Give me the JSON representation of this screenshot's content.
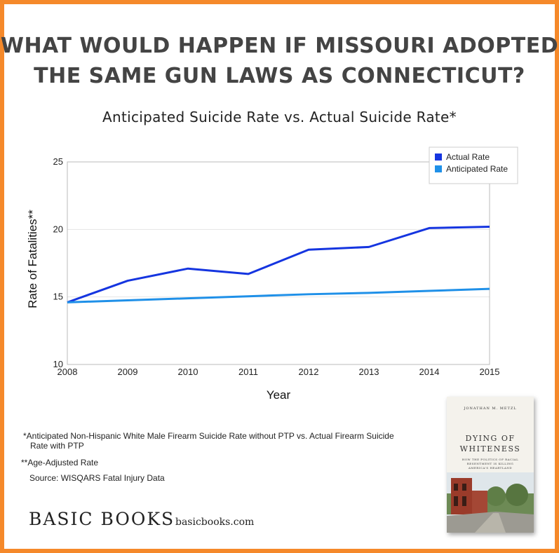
{
  "headline": {
    "line1": "WHAT WOULD HAPPEN IF MISSOURI ADOPTED",
    "line2": "THE SAME GUN LAWS AS CONNECTICUT?"
  },
  "colors": {
    "border": "#f5892a",
    "actual": "#1535e0",
    "anticipated": "#1f90e8"
  },
  "chart_data": {
    "type": "line",
    "title": "Anticipated Suicide Rate vs. Actual Suicide Rate*",
    "xlabel": "Year",
    "ylabel": "Rate of Fatalities**",
    "x": [
      "2008",
      "2009",
      "2010",
      "2011",
      "2012",
      "2013",
      "2014",
      "2015"
    ],
    "xlim": [
      2008,
      2015
    ],
    "ylim": [
      10,
      25
    ],
    "y_ticks": [
      "10",
      "15",
      "20",
      "25"
    ],
    "grid": true,
    "legend_position": "top-right",
    "series": [
      {
        "name": "Actual Rate",
        "values": [
          14.6,
          16.2,
          17.1,
          16.7,
          18.5,
          18.7,
          20.1,
          20.2
        ]
      },
      {
        "name": "Anticipated Rate",
        "values": [
          14.6,
          14.75,
          14.9,
          15.05,
          15.2,
          15.3,
          15.45,
          15.6
        ]
      }
    ]
  },
  "footnotes": {
    "note1_line1": "*Anticipated Non-Hispanic White Male Firearm Suicide Rate without PTP vs. Actual Firearm Suicide",
    "note1_line2": "Rate with PTP",
    "note2": "**Age-Adjusted Rate",
    "source": "Source: WISQARS Fatal Injury Data"
  },
  "publisher": {
    "name": "BASIC BOOKS",
    "website": "basicbooks.com"
  },
  "book": {
    "author": "JONATHAN M. METZL",
    "title_line1": "DYING OF",
    "title_line2": "WHITENESS",
    "subtitle": "HOW THE POLITICS OF RACIAL RESENTMENT IS KILLING AMERICA'S HEARTLAND"
  }
}
